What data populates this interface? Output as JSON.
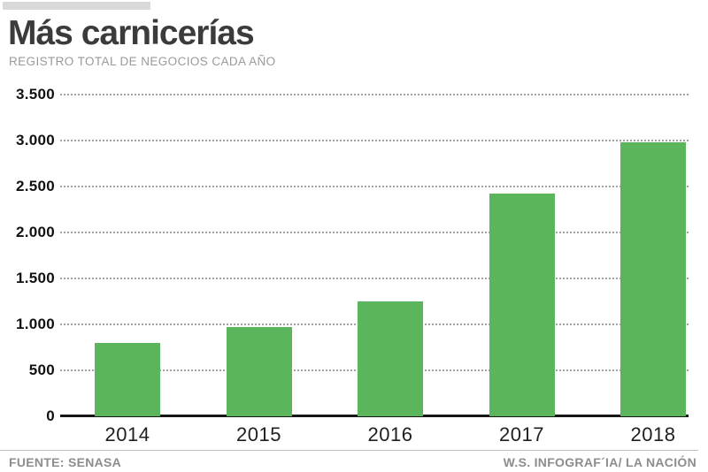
{
  "header": {
    "title": "Más carnicerías",
    "subtitle": "REGISTRO TOTAL DE NEGOCIOS CADA AÑO"
  },
  "footer": {
    "source": "FUENTE: SENASA",
    "credit": "W.S. INFOGRAF´IA/ LA NACIÓN"
  },
  "chart_data": {
    "type": "bar",
    "title": "Más carnicerías",
    "subtitle": "REGISTRO TOTAL DE NEGOCIOS CADA AÑO",
    "categories": [
      "2014",
      "2015",
      "2016",
      "2017",
      "2018"
    ],
    "values": [
      800,
      970,
      1250,
      2420,
      2980
    ],
    "xlabel": "",
    "ylabel": "",
    "ylim": [
      0,
      3500
    ],
    "ytick_interval": 500,
    "ytick_labels": [
      "3.500",
      "3.000",
      "2.500",
      "2.000",
      "1.500",
      "1.000",
      "500",
      "0"
    ],
    "grid": "horizontal-dotted",
    "legend": "none",
    "bar_color": "#5bb55a",
    "gridline_color": "#a2a2a2",
    "baseline_color": "#161616",
    "accent_bar_color": "#d9d9d9",
    "source": "FUENTE: SENASA",
    "credit": "W.S. INFOGRAF´IA/ LA NACIÓN"
  }
}
